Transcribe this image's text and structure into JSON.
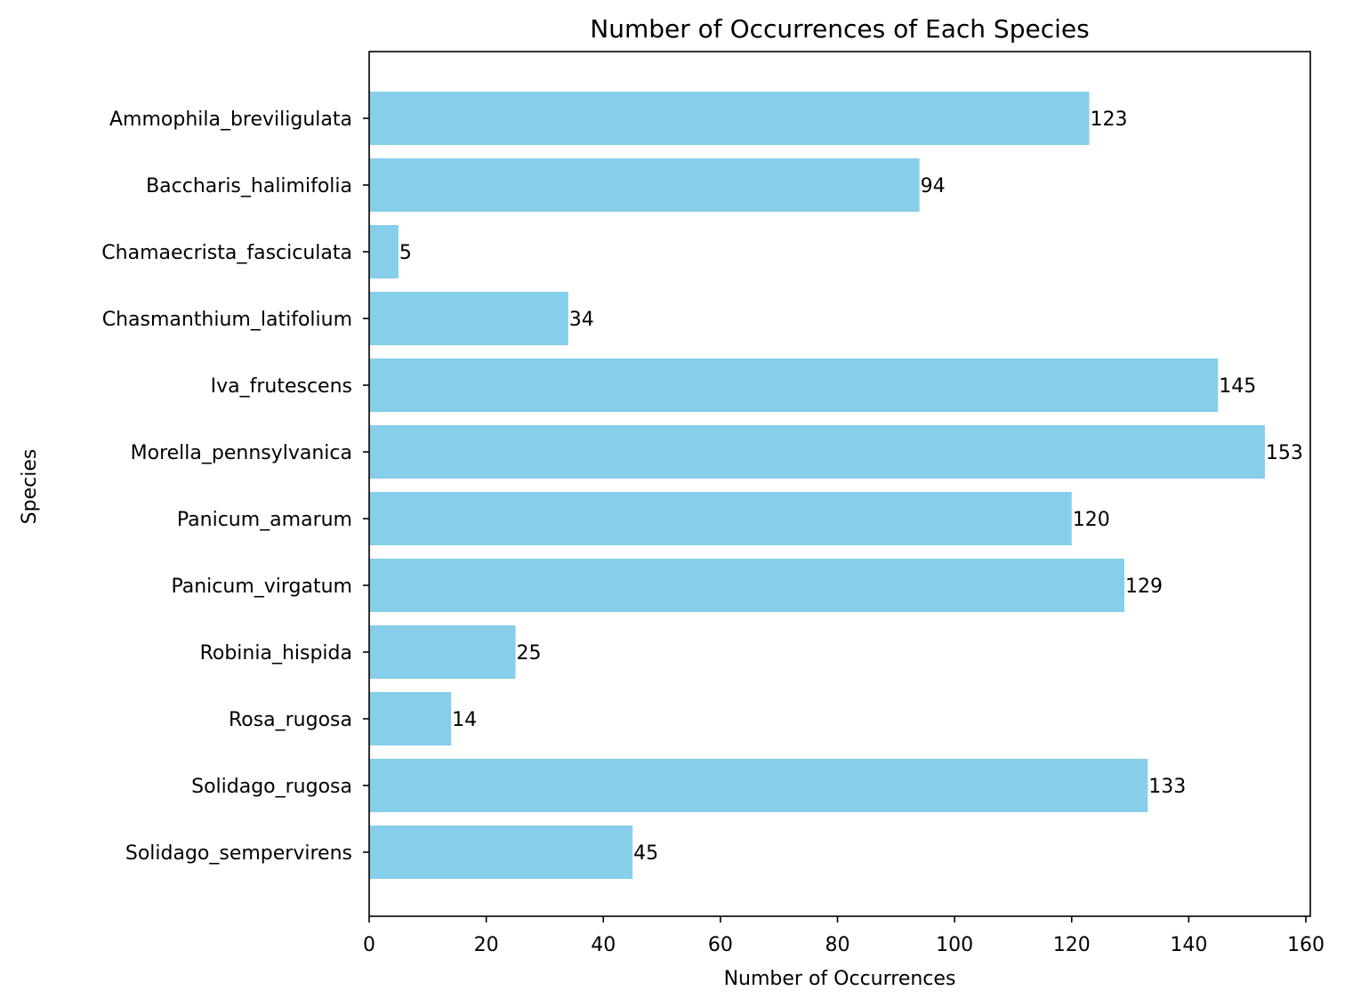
{
  "chart_data": {
    "type": "bar",
    "orientation": "horizontal",
    "title": "Number of Occurrences of Each Species",
    "xlabel": "Number of Occurrences",
    "ylabel": "Species",
    "xlim": [
      0,
      160
    ],
    "xticks": [
      0,
      20,
      40,
      60,
      80,
      100,
      120,
      140,
      160
    ],
    "grid": false,
    "bar_color": "#87ceeb",
    "categories": [
      "Ammophila_breviligulata",
      "Baccharis_halimifolia",
      "Chamaecrista_fasciculata",
      "Chasmanthium_latifolium",
      "Iva_frutescens",
      "Morella_pennsylvanica",
      "Panicum_amarum",
      "Panicum_virgatum",
      "Robinia_hispida",
      "Rosa_rugosa",
      "Solidago_rugosa",
      "Solidago_sempervirens"
    ],
    "values": [
      123,
      94,
      5,
      34,
      145,
      153,
      120,
      129,
      25,
      14,
      133,
      45
    ]
  }
}
